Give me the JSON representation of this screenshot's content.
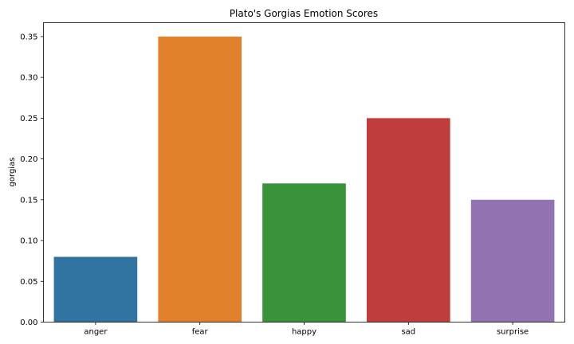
{
  "chart_data": {
    "type": "bar",
    "title": "Plato's Gorgias Emotion Scores",
    "xlabel": "",
    "ylabel": "gorgias",
    "categories": [
      "anger",
      "fear",
      "happy",
      "sad",
      "surprise"
    ],
    "values": [
      0.08,
      0.35,
      0.17,
      0.25,
      0.15
    ],
    "colors": [
      "#3274a1",
      "#e1812c",
      "#3a923a",
      "#c03d3e",
      "#9372b2"
    ],
    "ylim": [
      0,
      0.367
    ],
    "yticks": [
      0.0,
      0.05,
      0.1,
      0.15,
      0.2,
      0.25,
      0.3,
      0.35
    ],
    "ytick_labels": [
      "0.00",
      "0.05",
      "0.10",
      "0.15",
      "0.20",
      "0.25",
      "0.30",
      "0.35"
    ],
    "grid": false,
    "legend": "none"
  }
}
